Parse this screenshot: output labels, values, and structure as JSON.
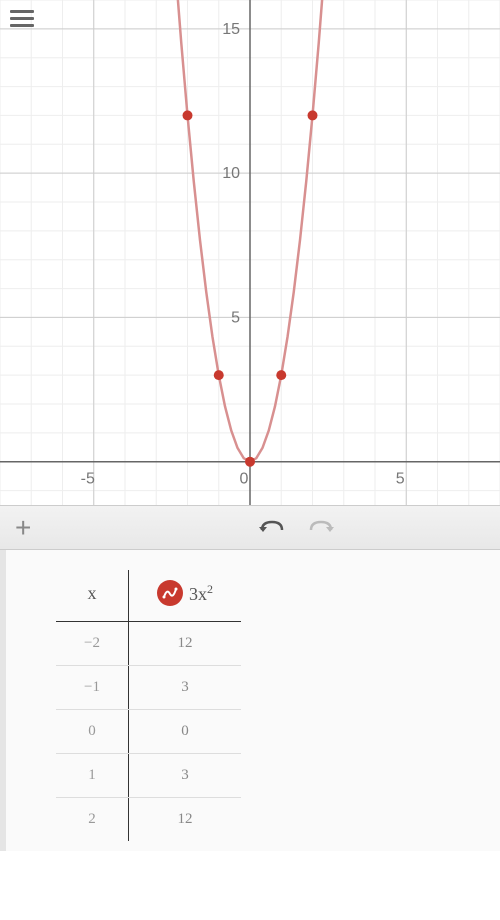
{
  "chart": {
    "type": "line",
    "function": "3x²",
    "xlim": [
      -8,
      8
    ],
    "ylim": [
      -1.5,
      16
    ],
    "x_axis_ticks": [
      -5,
      0,
      5
    ],
    "y_axis_ticks": [
      5,
      10,
      15
    ],
    "major_grid_step": 5,
    "minor_grid_step": 1,
    "curve_points_x": [
      -2.4,
      -2.2,
      -2.0,
      -1.8,
      -1.6,
      -1.4,
      -1.2,
      -1.0,
      -0.8,
      -0.6,
      -0.4,
      -0.2,
      0,
      0.2,
      0.4,
      0.6,
      0.8,
      1.0,
      1.2,
      1.4,
      1.6,
      1.8,
      2.0,
      2.2,
      2.4
    ],
    "marked_points": [
      {
        "x": -2,
        "y": 12
      },
      {
        "x": -1,
        "y": 3
      },
      {
        "x": 0,
        "y": 0
      },
      {
        "x": 1,
        "y": 3
      },
      {
        "x": 2,
        "y": 12
      }
    ],
    "colors": {
      "background": "#ffffff",
      "minor_grid": "#eeeeee",
      "major_grid": "#cccccc",
      "axis": "#666666",
      "curve": "#d89090",
      "point_fill": "#c8392e",
      "axis_label": "#777777"
    },
    "curve_width": 2.5,
    "point_radius": 5,
    "axis_label_fontsize": 16
  },
  "table": {
    "x_header": "x",
    "y_header_func": "3x",
    "y_header_exp": "2",
    "rows": [
      {
        "x": "−2",
        "y": "12"
      },
      {
        "x": "−1",
        "y": "3"
      },
      {
        "x": "0",
        "y": "0"
      },
      {
        "x": "1",
        "y": "3"
      },
      {
        "x": "2",
        "y": "12"
      }
    ]
  },
  "toolbar": {
    "add_label": "+"
  }
}
